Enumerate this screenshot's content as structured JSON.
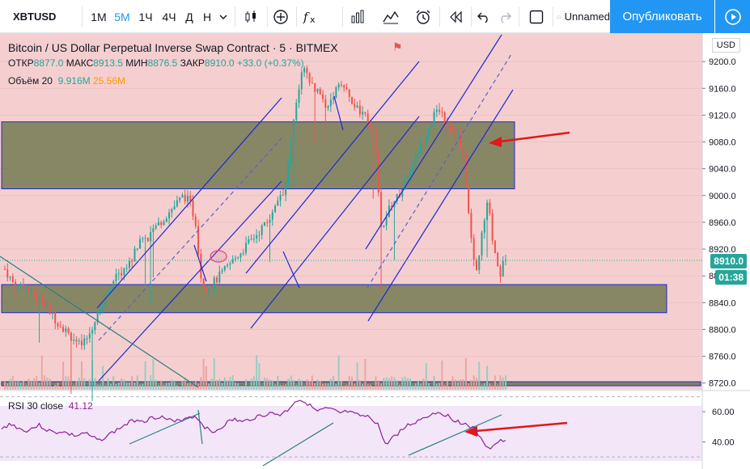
{
  "toolbar": {
    "symbol": "XBTUSD",
    "timeframes": [
      "1М",
      "5М",
      "1Ч",
      "4Ч",
      "Д",
      "Н"
    ],
    "active_timeframe": "5М",
    "layout_name": "Unnamed",
    "publish_label": "Опубликовать",
    "accent_color": "#2196f3"
  },
  "chart": {
    "title": "Bitcoin / US Dollar Perpetual Inverse Swap Contract · 5 · BITMEX",
    "ohlc": {
      "open_label": "ОТКР",
      "open": "8877.0",
      "high_label": "МАКС",
      "high": "8913.5",
      "low_label": "МИН",
      "low": "8876.5",
      "close_label": "ЗАКР",
      "close": "8910.0",
      "change": "+33.0 (+0.37%)"
    },
    "volume": {
      "label": "Объём 20",
      "value": "9.916M",
      "ma": "25.56M"
    },
    "currency": "USD",
    "last_price": "8910.0",
    "countdown": "01:38",
    "rsi": {
      "label": "RSI 30 close",
      "value": "41.12"
    }
  },
  "chart_data": [
    {
      "type": "candlestick",
      "title": "Bitcoin / US Dollar Perpetual Inverse Swap Contract · 5 · BITMEX",
      "ylabel": "USD",
      "ylim": [
        8710,
        9240
      ],
      "y_ticks": [
        9200,
        9160,
        9120,
        9080,
        9040,
        9000,
        8960,
        8920,
        8880,
        8840,
        8800,
        8760,
        8720
      ],
      "close_path": [
        8890,
        8875,
        8860,
        8870,
        8855,
        8850,
        8845,
        8835,
        8820,
        8810,
        8800,
        8790,
        8780,
        8775,
        8790,
        8810,
        8830,
        8850,
        8870,
        8880,
        8890,
        8900,
        8920,
        8940,
        8930,
        8950,
        8960,
        8970,
        8980,
        8990,
        9000,
        8990,
        8960,
        8870,
        8860,
        8870,
        8880,
        8890,
        8900,
        8910,
        8920,
        8930,
        8940,
        8950,
        8960,
        8980,
        9000,
        9010,
        9080,
        9140,
        9190,
        9170,
        9160,
        9150,
        9130,
        9150,
        9170,
        9160,
        9140,
        9130,
        9120,
        9110,
        9100,
        8950,
        8970,
        8990,
        9000,
        9020,
        9040,
        9060,
        9080,
        9100,
        9120,
        9130,
        9110,
        9100,
        9090,
        9050,
        8950,
        8880,
        8940,
        8990,
        8920,
        8880,
        8910
      ],
      "zones": [
        {
          "low": 9010,
          "high": 9110
        },
        {
          "low": 8825,
          "high": 8867
        },
        {
          "low": 8716,
          "high": 8722
        }
      ],
      "last_price": 8910.0
    },
    {
      "type": "line",
      "title": "RSI 30 close",
      "ylim": [
        22,
        73
      ],
      "y_ticks": [
        60,
        40
      ],
      "levels": [
        70,
        30
      ],
      "last_value": 41.12,
      "values": [
        48,
        52,
        50,
        47,
        49,
        51,
        48,
        46,
        47,
        45,
        44,
        46,
        43,
        41,
        44,
        47,
        50,
        53,
        55,
        54,
        56,
        57,
        55,
        53,
        55,
        57,
        56,
        50,
        46,
        49,
        53,
        55,
        53,
        55,
        57,
        58,
        59,
        58,
        61,
        67,
        68,
        64,
        60,
        62,
        61,
        59,
        60,
        58,
        57,
        56,
        52,
        38,
        43,
        47,
        51,
        53,
        56,
        58,
        60,
        58,
        55,
        53,
        51,
        48,
        39,
        36,
        40,
        41
      ]
    }
  ]
}
